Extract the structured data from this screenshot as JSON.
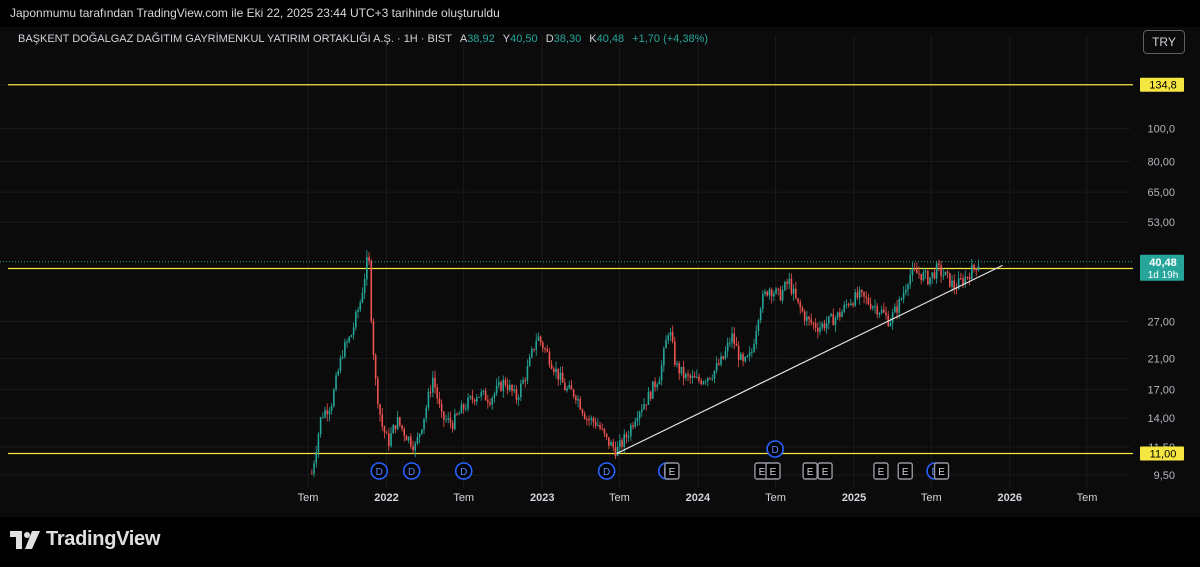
{
  "header": {
    "attribution": "Japonmumu tarafından TradingView.com ile Eki 22, 2025 23:44 UTC+3 tarihinde oluşturuldu"
  },
  "legend": {
    "symbol": "BAŞKENT DOĞALGAZ DAĞITIM GAYRİMENKUL YATIRIM ORTAKLIĞI A.Ş. · 1H · BIST",
    "open_label": "A",
    "open": "38,92",
    "high_label": "Y",
    "high": "40,50",
    "low_label": "D",
    "low": "38,30",
    "close_label": "K",
    "close": "40,48",
    "change": "+1,70 (+4,38%)"
  },
  "currency_button": "TRY",
  "brand": "TradingView",
  "colors": {
    "up": "#26a69a",
    "down": "#ef5350",
    "level": "#f5e642",
    "trend": "#e6e6e6"
  },
  "chart_data": {
    "type": "candlestick",
    "scale": "log",
    "ylim": [
      9.0,
      165
    ],
    "y_ticks": [
      "9,50",
      "11,50",
      "14,00",
      "17,00",
      "21,00",
      "27,00",
      "53,00",
      "65,00",
      "80,00",
      "100,0",
      "134,8"
    ],
    "x_ticks": [
      "Tem",
      "2022",
      "Tem",
      "2023",
      "Tem",
      "2024",
      "Tem",
      "2025",
      "Tem",
      "2026",
      "Tem"
    ],
    "x_dates": [
      "2021-07-01",
      "2022-01-01",
      "2022-07-01",
      "2023-01-01",
      "2023-07-01",
      "2024-01-01",
      "2024-07-01",
      "2025-01-01",
      "2025-07-01",
      "2026-01-01",
      "2026-07-01"
    ],
    "horizontal_levels": [
      {
        "label": "134,8",
        "value": 134.8
      },
      {
        "label": "38,66",
        "value": 38.66
      },
      {
        "label": "11,00",
        "value": 11.0
      }
    ],
    "current_price": {
      "label": "40,48",
      "value": 40.48,
      "countdown": "1d 19h"
    },
    "trendline": {
      "from": [
        "2023-06-25",
        11.0
      ],
      "to": [
        "2025-12-15",
        39.5
      ]
    },
    "price_path": [
      [
        "2021-07-10",
        9.6
      ],
      [
        "2021-08-01",
        14.2
      ],
      [
        "2021-08-25",
        15.5
      ],
      [
        "2021-09-20",
        22.0
      ],
      [
        "2021-10-10",
        24.5
      ],
      [
        "2021-11-01",
        31.0
      ],
      [
        "2021-11-20",
        43.0
      ],
      [
        "2021-11-25",
        30.0
      ],
      [
        "2021-12-05",
        18.5
      ],
      [
        "2021-12-20",
        13.5
      ],
      [
        "2022-01-05",
        11.8
      ],
      [
        "2022-01-25",
        13.8
      ],
      [
        "2022-02-15",
        12.5
      ],
      [
        "2022-03-10",
        11.5
      ],
      [
        "2022-04-01",
        14.5
      ],
      [
        "2022-04-20",
        18.5
      ],
      [
        "2022-05-10",
        14.0
      ],
      [
        "2022-06-05",
        13.5
      ],
      [
        "2022-06-30",
        15.0
      ],
      [
        "2022-08-01",
        16.5
      ],
      [
        "2022-09-01",
        16.0
      ],
      [
        "2022-10-05",
        18.0
      ],
      [
        "2022-11-01",
        16.0
      ],
      [
        "2022-11-25",
        19.0
      ],
      [
        "2022-12-20",
        24.5
      ],
      [
        "2023-01-10",
        22.0
      ],
      [
        "2023-02-05",
        19.0
      ],
      [
        "2023-02-25",
        17.0
      ],
      [
        "2023-03-20",
        16.5
      ],
      [
        "2023-04-15",
        14.0
      ],
      [
        "2023-05-10",
        13.5
      ],
      [
        "2023-06-01",
        12.0
      ],
      [
        "2023-06-25",
        11.2
      ],
      [
        "2023-07-20",
        12.5
      ],
      [
        "2023-08-10",
        14.5
      ],
      [
        "2023-09-05",
        16.0
      ],
      [
        "2023-10-05",
        19.0
      ],
      [
        "2023-10-25",
        26.0
      ],
      [
        "2023-11-10",
        20.0
      ],
      [
        "2023-12-01",
        18.5
      ],
      [
        "2024-01-01",
        18.0
      ],
      [
        "2024-02-05",
        19.0
      ],
      [
        "2024-03-01",
        21.0
      ],
      [
        "2024-03-20",
        24.5
      ],
      [
        "2024-04-15",
        20.0
      ],
      [
        "2024-05-05",
        21.5
      ],
      [
        "2024-05-25",
        30.0
      ],
      [
        "2024-06-15",
        34.0
      ],
      [
        "2024-07-10",
        32.0
      ],
      [
        "2024-08-01",
        35.5
      ],
      [
        "2024-08-20",
        30.5
      ],
      [
        "2024-09-15",
        27.0
      ],
      [
        "2024-10-10",
        26.0
      ],
      [
        "2024-11-05",
        27.0
      ],
      [
        "2024-12-01",
        28.5
      ],
      [
        "2024-12-20",
        31.0
      ],
      [
        "2025-01-15",
        32.0
      ],
      [
        "2025-02-10",
        30.5
      ],
      [
        "2025-03-05",
        29.0
      ],
      [
        "2025-03-25",
        27.0
      ],
      [
        "2025-04-20",
        31.0
      ],
      [
        "2025-05-10",
        37.0
      ],
      [
        "2025-06-01",
        37.5
      ],
      [
        "2025-06-25",
        36.0
      ],
      [
        "2025-07-15",
        38.5
      ],
      [
        "2025-08-05",
        36.5
      ],
      [
        "2025-08-25",
        34.0
      ],
      [
        "2025-09-20",
        36.5
      ],
      [
        "2025-10-10",
        39.0
      ],
      [
        "2025-10-22",
        40.48
      ]
    ],
    "events": [
      {
        "type": "dividend",
        "label": "D",
        "date": "2021-12-15",
        "row": "bottom"
      },
      {
        "type": "dividend",
        "label": "D",
        "date": "2022-03-01",
        "row": "bottom"
      },
      {
        "type": "dividend",
        "label": "D",
        "date": "2022-07-01",
        "row": "bottom"
      },
      {
        "type": "dividend",
        "label": "D",
        "date": "2023-06-01",
        "row": "bottom"
      },
      {
        "type": "dividend",
        "label": "D",
        "date": "2023-10-20",
        "row": "bottom"
      },
      {
        "type": "dividend",
        "label": "D",
        "date": "2024-06-30",
        "row": "level"
      },
      {
        "type": "earnings",
        "label": "E",
        "date": "2023-11-01",
        "row": "bottom"
      },
      {
        "type": "earnings",
        "label": "E",
        "date": "2024-05-30",
        "row": "bottom"
      },
      {
        "type": "earnings",
        "label": "E",
        "date": "2024-06-25",
        "row": "bottom"
      },
      {
        "type": "earnings",
        "label": "E",
        "date": "2024-09-20",
        "row": "bottom"
      },
      {
        "type": "earnings",
        "label": "E",
        "date": "2024-10-25",
        "row": "bottom"
      },
      {
        "type": "earnings",
        "label": "E",
        "date": "2025-03-05",
        "row": "bottom"
      },
      {
        "type": "earnings",
        "label": "E",
        "date": "2025-05-01",
        "row": "bottom"
      },
      {
        "type": "dividend",
        "label": "D",
        "date": "2025-07-10",
        "row": "bottom"
      },
      {
        "type": "earnings",
        "label": "E",
        "date": "2025-07-25",
        "row": "bottom"
      }
    ]
  }
}
